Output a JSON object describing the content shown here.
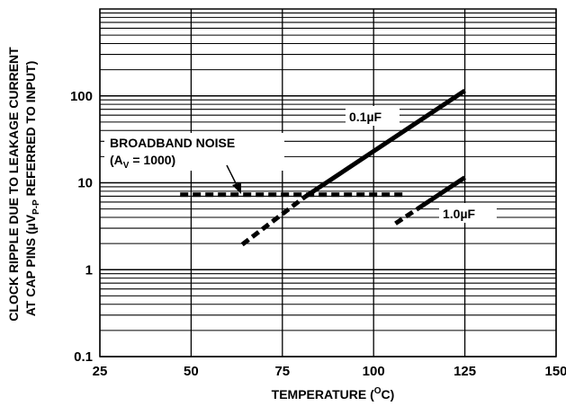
{
  "chart_data": {
    "type": "line",
    "xlabel": {
      "main": "TEMPERATURE (",
      "sup": "O",
      "end": "C)"
    },
    "ylabel": {
      "line1": "CLOCK RIPPLE DUE TO LEAKAGE CURRENT",
      "line2_a": "AT CAP PINS (",
      "line2_mu": "µ",
      "line2_v": "V",
      "line2_sub": "P-P",
      "line2_b": " REFERRED TO INPUT)"
    },
    "x_ticks": [
      "25",
      "50",
      "75",
      "100",
      "125",
      "150"
    ],
    "y_ticks": [
      "0.1",
      "1",
      "10",
      "100"
    ],
    "xlim": [
      25,
      150
    ],
    "ylim": [
      0.1,
      1000
    ],
    "y_scale": "log",
    "grid": true,
    "series": [
      {
        "name": "0.1µF",
        "segments": [
          {
            "style": "dashed",
            "points": [
              [
                64,
                1.95
              ],
              [
                81,
                6.8
              ]
            ]
          },
          {
            "style": "solid",
            "points": [
              [
                81,
                6.8
              ],
              [
                125,
                115
              ]
            ]
          }
        ]
      },
      {
        "name": "1.0µF",
        "segments": [
          {
            "style": "dashed",
            "points": [
              [
                106,
                3.4
              ],
              [
                112,
                5.0
              ]
            ]
          },
          {
            "style": "solid",
            "points": [
              [
                112,
                5.0
              ],
              [
                125,
                11.5
              ]
            ]
          }
        ]
      },
      {
        "name": "BROADBAND NOISE",
        "segments": [
          {
            "style": "dashed",
            "points": [
              [
                47,
                7.3
              ],
              [
                109,
                7.3
              ]
            ]
          }
        ]
      }
    ],
    "annotations": {
      "cap1": {
        "pre": "0.1",
        "mu": "µ",
        "post": "F"
      },
      "cap2": {
        "pre": "1.0",
        "mu": "µ",
        "post": "F"
      },
      "noise_line1": "BROADBAND NOISE",
      "noise_line2_a": "(A",
      "noise_line2_sub": "V",
      "noise_line2_b": " = 1000)"
    }
  }
}
